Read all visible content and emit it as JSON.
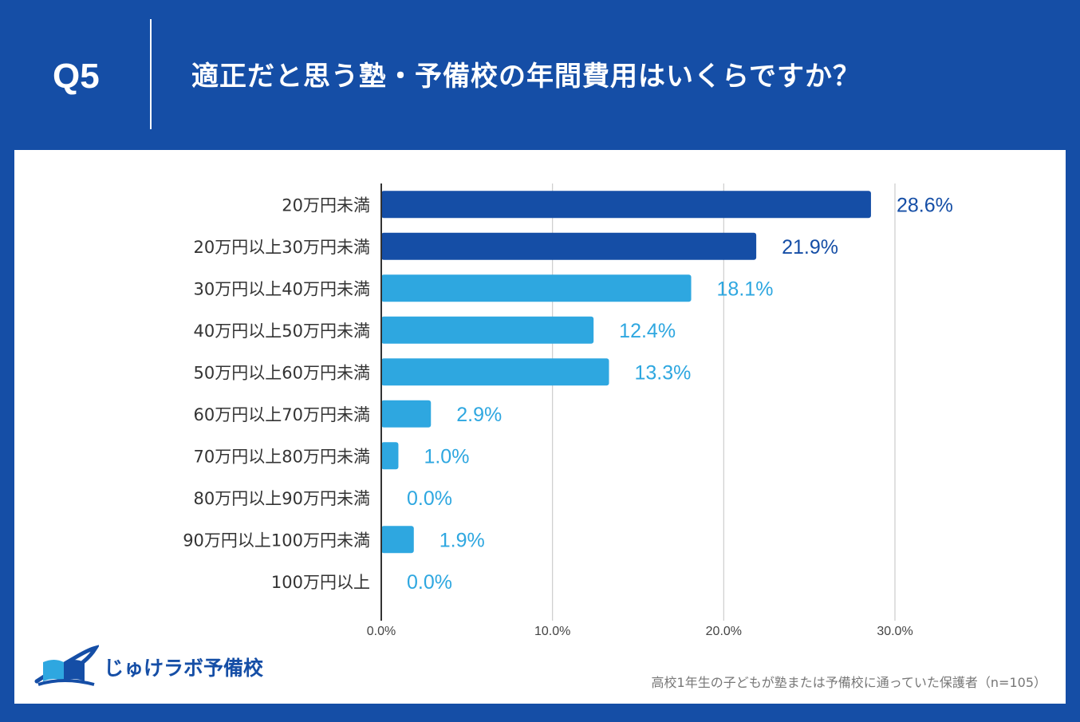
{
  "header": {
    "question_number": "Q5",
    "title": "適正だと思う塾・予備校の年間費用はいくらですか？"
  },
  "colors": {
    "background": "#154ea6",
    "bar_top": "#154ea6",
    "bar_other": "#2ea7e0",
    "grid": "#cccccc",
    "axis": "#333333"
  },
  "chart_data": {
    "type": "bar",
    "orientation": "horizontal",
    "title": "適正だと思う塾・予備校の年間費用はいくらですか？",
    "categories": [
      "20万円未満",
      "20万円以上30万円未満",
      "30万円以上40万円未満",
      "40万円以上50万円未満",
      "50万円以上60万円未満",
      "60万円以上70万円未満",
      "70万円以上80万円未満",
      "80万円以上90万円未満",
      "90万円以上100万円未満",
      "100万円以上"
    ],
    "values": [
      28.6,
      21.9,
      18.1,
      12.4,
      13.3,
      2.9,
      1.0,
      0.0,
      1.9,
      0.0
    ],
    "value_labels": [
      "28.6%",
      "21.9%",
      "18.1%",
      "12.4%",
      "13.3%",
      "2.9%",
      "1.0%",
      "0.0%",
      "1.9%",
      "0.0%"
    ],
    "highlighted_count": 2,
    "xlim": [
      0,
      35
    ],
    "xticks": [
      0,
      10,
      20,
      30
    ],
    "xtick_labels": [
      "0.0%",
      "10.0%",
      "20.0%",
      "30.0%"
    ],
    "grid": true,
    "xlabel": "",
    "ylabel": ""
  },
  "footer": {
    "logo_text": "じゅけラボ予備校",
    "source_note": "高校1年生の子どもが塾または予備校に通っていた保護者（n=105）"
  }
}
